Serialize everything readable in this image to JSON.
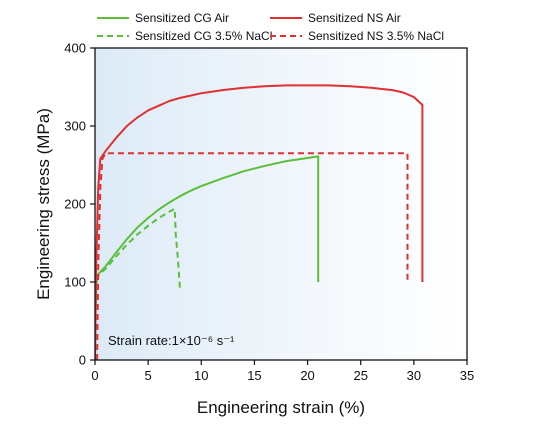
{
  "chart_data": {
    "type": "line",
    "xlabel": "Engineering strain (%)",
    "ylabel": "Engineering stress (MPa)",
    "xlim": [
      0,
      35
    ],
    "ylim": [
      0,
      400
    ],
    "x_ticks": [
      0,
      5,
      10,
      15,
      20,
      25,
      30,
      35
    ],
    "y_ticks": [
      0,
      100,
      200,
      300,
      400
    ],
    "grid": false,
    "legend_position": "top",
    "annotation": "Strain rate:1×10⁻⁶ s⁻¹",
    "series": [
      {
        "name": "Sensitized CG Air",
        "color": "#5cbf3a",
        "style": "solid",
        "points": [
          [
            0,
            0
          ],
          [
            0.05,
            60
          ],
          [
            0.15,
            100
          ],
          [
            0.3,
            110
          ],
          [
            1,
            120
          ],
          [
            2,
            138
          ],
          [
            3,
            155
          ],
          [
            4,
            170
          ],
          [
            5,
            182
          ],
          [
            6,
            193
          ],
          [
            7,
            202
          ],
          [
            8,
            210
          ],
          [
            9,
            217
          ],
          [
            10,
            223
          ],
          [
            12,
            233
          ],
          [
            14,
            242
          ],
          [
            16,
            249
          ],
          [
            18,
            255
          ],
          [
            20,
            259
          ],
          [
            21,
            261
          ],
          [
            21,
            100
          ]
        ]
      },
      {
        "name": "Sensitized CG 3.5% NaCl",
        "color": "#5cbf3a",
        "style": "dashed",
        "points": [
          [
            0,
            0
          ],
          [
            0.05,
            60
          ],
          [
            0.15,
            100
          ],
          [
            0.3,
            108
          ],
          [
            1,
            117
          ],
          [
            2,
            133
          ],
          [
            3,
            148
          ],
          [
            4,
            161
          ],
          [
            5,
            172
          ],
          [
            6,
            182
          ],
          [
            7,
            190
          ],
          [
            7.5,
            194
          ],
          [
            7.6,
            160
          ],
          [
            7.8,
            130
          ],
          [
            8,
            90
          ]
        ]
      },
      {
        "name": "Sensitized NS Air",
        "color": "#e03030",
        "style": "solid",
        "points": [
          [
            0,
            0
          ],
          [
            0.1,
            120
          ],
          [
            0.3,
            220
          ],
          [
            0.5,
            258
          ],
          [
            1,
            268
          ],
          [
            2,
            285
          ],
          [
            3,
            300
          ],
          [
            4,
            311
          ],
          [
            5,
            320
          ],
          [
            6,
            326
          ],
          [
            7,
            332
          ],
          [
            8,
            336
          ],
          [
            9,
            339
          ],
          [
            10,
            342
          ],
          [
            12,
            346
          ],
          [
            14,
            349
          ],
          [
            16,
            351
          ],
          [
            18,
            352
          ],
          [
            20,
            352
          ],
          [
            22,
            352
          ],
          [
            24,
            351
          ],
          [
            26,
            349
          ],
          [
            28,
            346
          ],
          [
            29,
            343
          ],
          [
            30,
            337
          ],
          [
            30.8,
            327
          ],
          [
            30.8,
            100
          ]
        ]
      },
      {
        "name": "Sensitized NS 3.5% NaCl",
        "color": "#e03030",
        "style": "dashed",
        "points": [
          [
            0.2,
            0
          ],
          [
            0.3,
            120
          ],
          [
            0.5,
            220
          ],
          [
            0.7,
            258
          ],
          [
            1,
            265
          ],
          [
            29.4,
            265
          ],
          [
            29.4,
            100
          ]
        ]
      }
    ]
  }
}
